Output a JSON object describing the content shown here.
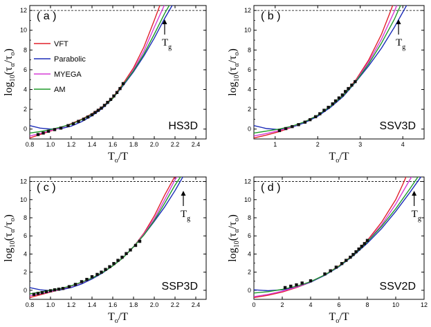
{
  "chart_data": [
    {
      "type": "line",
      "panel": "(a)",
      "name": "HS3D",
      "xlabel": "To/T",
      "ylabel": "log10(τα/τo)",
      "xlim": [
        0.8,
        2.5
      ],
      "ylim": [
        -1,
        12.5
      ],
      "xticks": [
        0.8,
        1.0,
        1.2,
        1.4,
        1.6,
        1.8,
        2.0,
        2.2,
        2.4
      ],
      "yticks": [
        0,
        2,
        4,
        6,
        8,
        10,
        12
      ],
      "tg_x": 2.1,
      "tg_label": "Tg",
      "reference_line_y": 12,
      "legend": [
        "VFT",
        "Parabolic",
        "MYEGA",
        "AM"
      ],
      "points": {
        "x": [
          0.88,
          0.93,
          0.98,
          1.04,
          1.1,
          1.17,
          1.22,
          1.27,
          1.32,
          1.36,
          1.4,
          1.43,
          1.46,
          1.49,
          1.52,
          1.55,
          1.58,
          1.61,
          1.64,
          1.67,
          1.7
        ],
        "y": [
          -0.55,
          -0.4,
          -0.22,
          -0.05,
          0.1,
          0.35,
          0.55,
          0.78,
          1.0,
          1.22,
          1.45,
          1.68,
          1.9,
          2.12,
          2.4,
          2.7,
          3.0,
          3.35,
          3.7,
          4.1,
          4.6
        ]
      },
      "series": [
        {
          "name": "VFT",
          "color": "#e0202a",
          "x": [
            0.8,
            0.9,
            1.0,
            1.1,
            1.2,
            1.3,
            1.4,
            1.5,
            1.6,
            1.7,
            1.8,
            1.9,
            2.0,
            2.05,
            2.1
          ],
          "y": [
            -0.9,
            -0.55,
            -0.2,
            0.15,
            0.55,
            1.0,
            1.55,
            2.25,
            3.2,
            4.6,
            6.2,
            8.3,
            11.0,
            12.4,
            13.5
          ]
        },
        {
          "name": "Parabolic",
          "color": "#1a2bb8",
          "x": [
            0.8,
            0.9,
            1.0,
            1.1,
            1.2,
            1.3,
            1.4,
            1.5,
            1.6,
            1.7,
            1.8,
            1.9,
            2.0,
            2.1,
            2.2,
            2.25
          ],
          "y": [
            0.35,
            0.1,
            0.0,
            0.05,
            0.3,
            0.75,
            1.35,
            2.1,
            3.1,
            4.4,
            5.8,
            7.4,
            9.2,
            11.2,
            13.0,
            13.5
          ]
        },
        {
          "name": "MYEGA",
          "color": "#d63ad6",
          "x": [
            0.8,
            0.9,
            1.0,
            1.1,
            1.2,
            1.3,
            1.4,
            1.5,
            1.6,
            1.7,
            1.8,
            1.9,
            2.0,
            2.1,
            2.15
          ],
          "y": [
            -0.7,
            -0.45,
            -0.15,
            0.15,
            0.5,
            0.95,
            1.5,
            2.2,
            3.1,
            4.5,
            6.0,
            7.9,
            10.3,
            12.6,
            13.5
          ]
        },
        {
          "name": "AM",
          "color": "#1e9a2a",
          "x": [
            0.8,
            0.9,
            1.0,
            1.1,
            1.2,
            1.3,
            1.4,
            1.5,
            1.6,
            1.7,
            1.8,
            1.9,
            2.0,
            2.1,
            2.2
          ],
          "y": [
            -0.4,
            -0.25,
            -0.05,
            0.2,
            0.5,
            0.95,
            1.5,
            2.2,
            3.1,
            4.5,
            5.9,
            7.6,
            9.6,
            11.7,
            13.5
          ]
        }
      ]
    },
    {
      "type": "line",
      "panel": "(b)",
      "name": "SSV3D",
      "xlabel": "To/T",
      "ylabel": "log10(τα/τo)",
      "xlim": [
        0.5,
        4.5
      ],
      "ylim": [
        -1,
        12.5
      ],
      "xticks": [
        1,
        2,
        3,
        4
      ],
      "yticks": [
        0,
        2,
        4,
        6,
        8,
        10,
        12
      ],
      "tg_x": 3.9,
      "tg_label": "Tg",
      "reference_line_y": 12,
      "points": {
        "x": [
          1.1,
          1.25,
          1.4,
          1.55,
          1.7,
          1.82,
          1.95,
          2.05,
          2.15,
          2.25,
          2.35,
          2.42,
          2.5,
          2.58,
          2.65,
          2.72,
          2.8,
          2.88
        ],
        "y": [
          -0.15,
          0.05,
          0.25,
          0.45,
          0.7,
          0.95,
          1.25,
          1.55,
          1.9,
          2.2,
          2.55,
          2.85,
          3.15,
          3.45,
          3.8,
          4.1,
          4.45,
          4.8
        ]
      },
      "series": [
        {
          "name": "VFT",
          "color": "#e0202a",
          "x": [
            0.5,
            0.8,
            1.1,
            1.4,
            1.7,
            2.0,
            2.3,
            2.6,
            2.9,
            3.2,
            3.5,
            3.7,
            3.85
          ],
          "y": [
            -0.9,
            -0.6,
            -0.25,
            0.2,
            0.75,
            1.4,
            2.3,
            3.4,
            5.0,
            7.0,
            9.6,
            11.8,
            13.5
          ]
        },
        {
          "name": "Parabolic",
          "color": "#1a2bb8",
          "x": [
            0.5,
            0.8,
            1.1,
            1.4,
            1.7,
            2.0,
            2.3,
            2.6,
            2.9,
            3.2,
            3.5,
            3.8,
            4.1,
            4.2
          ],
          "y": [
            0.35,
            0.05,
            -0.05,
            0.2,
            0.65,
            1.3,
            2.2,
            3.3,
            4.8,
            6.4,
            8.2,
            10.3,
            12.6,
            13.5
          ]
        },
        {
          "name": "MYEGA",
          "color": "#d63ad6",
          "x": [
            0.5,
            0.8,
            1.1,
            1.4,
            1.7,
            2.0,
            2.3,
            2.6,
            2.9,
            3.2,
            3.5,
            3.8,
            3.95
          ],
          "y": [
            -0.7,
            -0.45,
            -0.15,
            0.25,
            0.75,
            1.4,
            2.3,
            3.4,
            4.9,
            6.8,
            9.1,
            11.9,
            13.5
          ]
        },
        {
          "name": "AM",
          "color": "#1e9a2a",
          "x": [
            0.5,
            0.8,
            1.1,
            1.4,
            1.7,
            2.0,
            2.3,
            2.6,
            2.9,
            3.2,
            3.5,
            3.8,
            4.05
          ],
          "y": [
            -0.4,
            -0.2,
            0.0,
            0.3,
            0.75,
            1.4,
            2.3,
            3.4,
            4.85,
            6.6,
            8.7,
            11.1,
            13.5
          ]
        }
      ]
    },
    {
      "type": "line",
      "panel": "(c)",
      "name": "SSP3D",
      "xlabel": "To/T",
      "ylabel": "log10(τα/τo)",
      "xlim": [
        0.8,
        2.5
      ],
      "ylim": [
        -1,
        12.5
      ],
      "xticks": [
        0.8,
        1.0,
        1.2,
        1.4,
        1.6,
        1.8,
        2.0,
        2.2,
        2.4
      ],
      "yticks": [
        0,
        2,
        4,
        6,
        8,
        10,
        12
      ],
      "tg_x": 2.28,
      "tg_label": "Tg",
      "reference_line_y": 12,
      "points": {
        "x": [
          0.84,
          0.88,
          0.92,
          0.96,
          1.0,
          1.04,
          1.08,
          1.12,
          1.18,
          1.24,
          1.3,
          1.35,
          1.4,
          1.45,
          1.49,
          1.53,
          1.57,
          1.61,
          1.65,
          1.69,
          1.73,
          1.77,
          1.82,
          1.86
        ],
        "y": [
          -0.45,
          -0.35,
          -0.25,
          -0.15,
          -0.05,
          0.05,
          0.12,
          0.2,
          0.4,
          0.65,
          0.95,
          1.2,
          1.5,
          1.75,
          2.0,
          2.3,
          2.6,
          2.95,
          3.3,
          3.65,
          4.05,
          4.45,
          4.95,
          5.4
        ]
      },
      "series": [
        {
          "name": "VFT",
          "color": "#e0202a",
          "x": [
            0.8,
            0.9,
            1.0,
            1.1,
            1.2,
            1.3,
            1.4,
            1.5,
            1.6,
            1.7,
            1.8,
            1.9,
            2.0,
            2.1,
            2.2,
            2.25
          ],
          "y": [
            -0.8,
            -0.5,
            -0.2,
            0.1,
            0.45,
            0.85,
            1.35,
            1.95,
            2.7,
            3.6,
            4.8,
            6.3,
            8.2,
            10.5,
            12.6,
            13.5
          ]
        },
        {
          "name": "Parabolic",
          "color": "#1a2bb8",
          "x": [
            0.8,
            0.9,
            1.0,
            1.1,
            1.2,
            1.3,
            1.4,
            1.5,
            1.6,
            1.7,
            1.8,
            1.9,
            2.0,
            2.1,
            2.2,
            2.3,
            2.35
          ],
          "y": [
            0.3,
            0.05,
            -0.05,
            0.05,
            0.3,
            0.7,
            1.25,
            1.9,
            2.7,
            3.6,
            4.8,
            6.1,
            7.6,
            9.2,
            11.0,
            13.0,
            13.5
          ]
        },
        {
          "name": "MYEGA",
          "color": "#d63ad6",
          "x": [
            0.8,
            0.9,
            1.0,
            1.1,
            1.2,
            1.3,
            1.4,
            1.5,
            1.6,
            1.7,
            1.8,
            1.9,
            2.0,
            2.1,
            2.2,
            2.28
          ],
          "y": [
            -0.6,
            -0.4,
            -0.15,
            0.15,
            0.45,
            0.85,
            1.35,
            1.95,
            2.7,
            3.6,
            4.8,
            6.2,
            7.9,
            10.0,
            12.2,
            13.5
          ]
        },
        {
          "name": "AM",
          "color": "#1e9a2a",
          "x": [
            0.8,
            0.9,
            1.0,
            1.1,
            1.2,
            1.3,
            1.4,
            1.5,
            1.6,
            1.7,
            1.8,
            1.9,
            2.0,
            2.1,
            2.2,
            2.3,
            2.32
          ],
          "y": [
            -0.4,
            -0.2,
            0.0,
            0.2,
            0.5,
            0.9,
            1.35,
            1.95,
            2.7,
            3.6,
            4.8,
            6.1,
            7.7,
            9.6,
            11.6,
            13.3,
            13.5
          ]
        }
      ]
    },
    {
      "type": "line",
      "panel": "(d)",
      "name": "SSV2D",
      "xlabel": "To/T",
      "ylabel": "log10(τα/τo)",
      "xlim": [
        0,
        12
      ],
      "ylim": [
        -1,
        12.5
      ],
      "xticks": [
        0,
        2,
        4,
        6,
        8,
        10,
        12
      ],
      "yticks": [
        0,
        2,
        4,
        6,
        8,
        10,
        12
      ],
      "tg_x": 11.3,
      "tg_label": "Tg",
      "reference_line_y": 12,
      "points": {
        "x": [
          2.2,
          2.6,
          3.0,
          3.4,
          4.0,
          5.0,
          5.4,
          5.8,
          6.2,
          6.5,
          6.8,
          7.0,
          7.2,
          7.4,
          7.6,
          7.8,
          8.0
        ],
        "y": [
          0.3,
          0.45,
          0.6,
          0.8,
          1.05,
          1.8,
          2.15,
          2.55,
          2.95,
          3.3,
          3.65,
          3.95,
          4.25,
          4.55,
          4.85,
          5.15,
          5.5
        ]
      },
      "series": [
        {
          "name": "VFT",
          "color": "#e0202a",
          "x": [
            0,
            1,
            2,
            3,
            4,
            5,
            6,
            7,
            8,
            9,
            10,
            10.5,
            11.0
          ],
          "y": [
            -0.8,
            -0.55,
            -0.2,
            0.3,
            0.9,
            1.7,
            2.7,
            3.9,
            5.5,
            7.5,
            10.0,
            11.7,
            13.5
          ]
        },
        {
          "name": "Parabolic",
          "color": "#1a2bb8",
          "x": [
            0,
            1,
            2,
            3,
            4,
            5,
            6,
            7,
            8,
            9,
            10,
            11,
            12
          ],
          "y": [
            0.05,
            -0.05,
            0.05,
            0.35,
            0.9,
            1.65,
            2.6,
            3.8,
            5.2,
            6.8,
            8.7,
            10.8,
            13.0
          ]
        },
        {
          "name": "MYEGA",
          "color": "#d63ad6",
          "x": [
            0,
            1,
            2,
            3,
            4,
            5,
            6,
            7,
            8,
            9,
            10,
            11,
            11.5
          ],
          "y": [
            -0.7,
            -0.45,
            -0.1,
            0.35,
            0.95,
            1.7,
            2.65,
            3.85,
            5.4,
            7.2,
            9.5,
            12.2,
            13.5
          ]
        },
        {
          "name": "AM",
          "color": "#1e9a2a",
          "x": [
            0,
            1,
            2,
            3,
            4,
            5,
            6,
            7,
            8,
            9,
            10,
            11,
            12
          ],
          "y": [
            -0.3,
            -0.15,
            0.1,
            0.45,
            0.95,
            1.7,
            2.65,
            3.85,
            5.35,
            7.05,
            9.0,
            11.2,
            13.5
          ]
        }
      ]
    }
  ]
}
